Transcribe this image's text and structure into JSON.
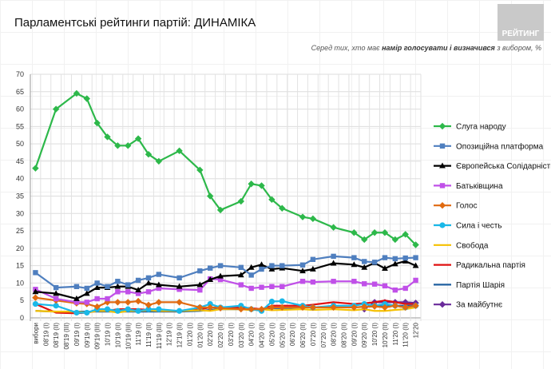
{
  "title": "Парламентські рейтинги партій: ДИНАМІКА",
  "logo_text": "РЕЙТИНГ",
  "subtitle": {
    "pre": "Серед тих, хто має ",
    "bold": "намір голосувати і визначився",
    "post": " з вибором, %"
  },
  "chart_data": {
    "type": "line",
    "title": "Парламентські рейтинги партій: ДИНАМІКА",
    "ylim": [
      0,
      70
    ],
    "yticks": [
      0,
      5,
      10,
      15,
      20,
      25,
      30,
      35,
      40,
      45,
      50,
      55,
      60,
      65,
      70
    ],
    "grid": true,
    "legend": "right",
    "categories": [
      "вибори",
      "08'19 (I)",
      "08'19 (II)",
      "08'19 (III)",
      "09'19 (I)",
      "09'19 (II)",
      "09'19 (III)",
      "10'19 (I)",
      "10'19 (II)",
      "10'19 (III)",
      "11'19 (I)",
      "11'19 (II)",
      "11'19 (III)",
      "12'19 (I)",
      "12'19 (II)",
      "01'20 (I)",
      "01'20 (II)",
      "02'20 (I)",
      "02'20 (II)",
      "03'20 (I)",
      "03'20 (II)",
      "04'20 (I)",
      "04'20 (II)",
      "05'20 (I)",
      "05'20 (II)",
      "06'20 (I)",
      "06'20 (II)",
      "07'20 (I)",
      "07'20 (II)",
      "08'20 (I)",
      "08'20 (II)",
      "09'20 (I)",
      "09'20 (II)",
      "10'20 (I)",
      "10'20 (II)",
      "11'20 (I)",
      "11'20 (II)",
      "12'20"
    ],
    "series": [
      {
        "name": "Слуга народу",
        "color": "#2db84a",
        "marker": "diamond",
        "values": [
          43,
          null,
          60,
          null,
          64.5,
          63,
          56,
          52,
          49.5,
          49.5,
          51.5,
          47,
          45,
          null,
          48,
          null,
          42.5,
          35,
          31,
          null,
          33.5,
          38.5,
          38,
          34,
          31.5,
          null,
          29,
          28.5,
          null,
          26,
          null,
          24.5,
          22.5,
          24.5,
          24.5,
          22.5,
          24,
          21
        ]
      },
      {
        "name": "Опозиційна платформа",
        "color": "#4f7fbf",
        "marker": "square",
        "values": [
          13,
          null,
          8.7,
          null,
          9,
          8.5,
          10,
          9,
          10.5,
          9.5,
          10.8,
          11.5,
          12.5,
          null,
          11.5,
          null,
          13.5,
          14.3,
          15,
          null,
          14.5,
          12.3,
          14,
          15,
          15,
          null,
          15.2,
          16.8,
          null,
          17.7,
          null,
          17.3,
          16.2,
          16,
          17.3,
          17,
          17.2,
          17.3
        ]
      },
      {
        "name": "Європейська Солідарність",
        "color": "#000000",
        "marker": "triangle",
        "values": [
          7.5,
          null,
          7,
          null,
          5.5,
          7,
          8.7,
          8.7,
          9,
          9,
          8,
          10,
          9.5,
          null,
          9,
          null,
          9.5,
          11,
          12,
          null,
          12.3,
          14.5,
          15.3,
          14,
          14.3,
          null,
          13.5,
          14,
          null,
          15.7,
          null,
          15.3,
          14.5,
          15.8,
          14.2,
          15.5,
          16.3,
          15
        ]
      },
      {
        "name": "Батьківщина",
        "color": "#c050e8",
        "marker": "square",
        "values": [
          8.2,
          null,
          5.5,
          null,
          4.5,
          4.5,
          5.5,
          5.5,
          7.5,
          7.5,
          7,
          7.5,
          8.5,
          null,
          8.2,
          null,
          8,
          11.2,
          11,
          null,
          9.5,
          8.5,
          8.8,
          9,
          9,
          null,
          10.5,
          10.3,
          null,
          10.5,
          null,
          10.5,
          9.8,
          9.7,
          9.2,
          8,
          8.5,
          10.8
        ]
      },
      {
        "name": "Голос",
        "color": "#e06a10",
        "marker": "diamond",
        "values": [
          5.8,
          null,
          5,
          null,
          4.2,
          4,
          3.2,
          4.5,
          4.5,
          4.5,
          4.8,
          3.7,
          4.5,
          null,
          4.5,
          null,
          3,
          3,
          2.8,
          null,
          2.5,
          2.5,
          2.5,
          3,
          3,
          null,
          3,
          3,
          null,
          3,
          null,
          3,
          3.2,
          3.3,
          3,
          3.5,
          3,
          3.5
        ]
      },
      {
        "name": "Сила і честь",
        "color": "#1ab8e8",
        "marker": "circle",
        "values": [
          4,
          null,
          3.5,
          null,
          1.5,
          1.5,
          2.5,
          2.5,
          2,
          2.5,
          2,
          2.5,
          2.5,
          null,
          2,
          null,
          3,
          4,
          3,
          null,
          3.5,
          2.5,
          2,
          4.7,
          4.8,
          null,
          3.5,
          3,
          null,
          3.5,
          null,
          3.5,
          4,
          3.5,
          4,
          3.5,
          3,
          3.5
        ]
      },
      {
        "name": "Свобода",
        "color": "#f5c000",
        "marker": "none",
        "values": [
          2,
          null,
          1.8,
          null,
          1.8,
          1.5,
          2,
          2,
          1.5,
          2,
          2,
          2.2,
          2,
          null,
          2,
          null,
          2.2,
          2,
          2.5,
          null,
          2.5,
          2.2,
          2.5,
          2.2,
          2.3,
          null,
          2.5,
          2.3,
          null,
          2.5,
          null,
          2.2,
          2.5,
          2,
          2,
          2.3,
          2.5,
          3
        ]
      },
      {
        "name": "Радикальна партія",
        "color": "#e01010",
        "marker": "none",
        "values": [
          4,
          null,
          1.5,
          null,
          1.3,
          1.5,
          2,
          2,
          2.5,
          2.5,
          2.5,
          2.3,
          2,
          null,
          2,
          null,
          2.5,
          3,
          3,
          null,
          3,
          2.8,
          2.5,
          3.5,
          3.5,
          null,
          3.5,
          3.8,
          null,
          4.5,
          null,
          4,
          4.2,
          4.5,
          5,
          4.5,
          4,
          4
        ]
      },
      {
        "name": "Партія Шарія",
        "color": "#1f5f9f",
        "marker": "none",
        "values": [
          2,
          null,
          1.8,
          null,
          1.8,
          1.8,
          1.8,
          1.8,
          1.8,
          1.8,
          1.8,
          1.8,
          1.8,
          null,
          1.8,
          null,
          2,
          2.3,
          2.5,
          null,
          2.5,
          2.5,
          2.5,
          2.8,
          2.8,
          null,
          3,
          3,
          null,
          3,
          null,
          3,
          3.2,
          3.3,
          3.3,
          3.5,
          3.5,
          3.5
        ]
      },
      {
        "name": "За майбутнє",
        "color": "#6a2a9a",
        "marker": "diamond",
        "values": [
          null,
          null,
          null,
          null,
          null,
          null,
          null,
          null,
          null,
          null,
          null,
          null,
          null,
          null,
          null,
          null,
          null,
          null,
          null,
          null,
          null,
          null,
          null,
          null,
          null,
          null,
          null,
          null,
          null,
          null,
          null,
          null,
          2.5,
          4.5,
          4.5,
          4.5,
          4.5,
          4.3
        ]
      }
    ]
  }
}
